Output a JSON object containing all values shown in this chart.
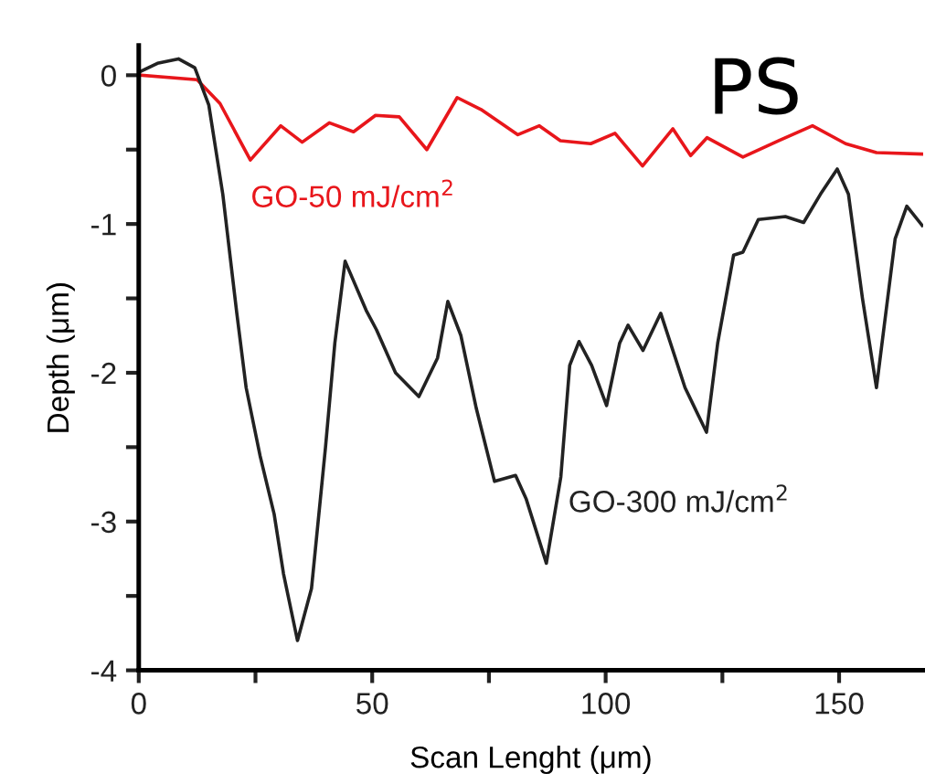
{
  "chart_data": {
    "type": "line",
    "xlabel": "Scan Lenght (μm)",
    "ylabel": "Depth (μm)",
    "xlim": [
      0,
      168
    ],
    "ylim": [
      -4,
      0.2
    ],
    "xticks": [
      0,
      {
        "value": 25,
        "label": null
      },
      50,
      {
        "value": 75,
        "label": null
      },
      100,
      {
        "value": 125,
        "label": null
      },
      150
    ],
    "yticks": [
      -4,
      {
        "value": -3.5,
        "label": null
      },
      -3,
      {
        "value": -2.5,
        "label": null
      },
      -2,
      {
        "value": -1.5,
        "label": null
      },
      -1,
      {
        "value": -0.5,
        "label": null
      },
      0
    ],
    "grid": false,
    "legend": false,
    "marker": "none",
    "line_style": "solid",
    "annotations": [
      "PS"
    ],
    "series": [
      {
        "name": "GO-50 mJ/cm$^{2}$",
        "color": "#e8161b",
        "x": [
          0.5,
          12.5,
          17.4,
          23.9,
          30.4,
          35,
          40.8,
          46,
          50.7,
          55.8,
          61.7,
          68.2,
          73.3,
          81.2,
          85.8,
          90.3,
          96.8,
          102,
          107.9,
          114.4,
          118.2,
          121.7,
          129.4,
          137.1,
          144.3,
          151.4,
          158,
          167.8
        ],
        "values": [
          0,
          -0.03,
          -0.19,
          -0.57,
          -0.34,
          -0.45,
          -0.32,
          -0.38,
          -0.27,
          -0.28,
          -0.5,
          -0.15,
          -0.23,
          -0.4,
          -0.34,
          -0.44,
          -0.46,
          -0.39,
          -0.61,
          -0.36,
          -0.54,
          -0.42,
          -0.55,
          -0.44,
          -0.34,
          -0.46,
          -0.52,
          -0.53
        ]
      },
      {
        "name": "GO-300 mJ/cm$^{2}$",
        "color": "#222222",
        "x": [
          0,
          4,
          8.5,
          12,
          15,
          18,
          21,
          23,
          26,
          29,
          31,
          34,
          37,
          40,
          42,
          44.2,
          48.7,
          50.9,
          55,
          60,
          64,
          66.2,
          69,
          72.3,
          76.2,
          80.7,
          83,
          87.3,
          90.4,
          92.3,
          94.3,
          97,
          100.2,
          103,
          104.8,
          108,
          111.8,
          117,
          121.6,
          124,
          127.4,
          129.4,
          132.7,
          138.5,
          142.4,
          146,
          149.6,
          152,
          155,
          158,
          160,
          162,
          164.5,
          167.8
        ],
        "values": [
          0.02,
          0.08,
          0.11,
          0.05,
          -0.2,
          -0.8,
          -1.6,
          -2.1,
          -2.56,
          -2.95,
          -3.35,
          -3.8,
          -3.45,
          -2.5,
          -1.8,
          -1.25,
          -1.58,
          -1.71,
          -2.0,
          -2.16,
          -1.9,
          -1.52,
          -1.75,
          -2.24,
          -2.73,
          -2.69,
          -2.85,
          -3.28,
          -2.7,
          -1.95,
          -1.79,
          -1.95,
          -2.22,
          -1.8,
          -1.68,
          -1.85,
          -1.6,
          -2.1,
          -2.4,
          -1.8,
          -1.21,
          -1.19,
          -0.97,
          -0.95,
          -0.99,
          -0.8,
          -0.63,
          -0.8,
          -1.5,
          -2.1,
          -1.6,
          -1.1,
          -0.88,
          -1.01
        ]
      }
    ]
  }
}
